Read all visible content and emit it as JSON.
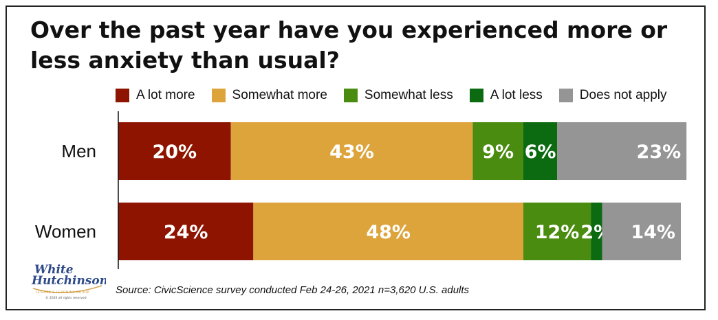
{
  "colors": {
    "a_lot_more": "#8f1400",
    "somewhat_more": "#dea43c",
    "somewhat_less": "#4a8c0f",
    "a_lot_less": "#0c6a10",
    "does_not_apply": "#959595"
  },
  "source": "Source: CivicScience survey conducted Feb 24-26, 2021 n=3,620 U.S. adults",
  "logo": {
    "line1": "White",
    "line2": "Hutchinson",
    "arc": "LEISURE & LEARNING GROUP",
    "copyright": "© 2020 all rights reserved"
  },
  "chart_data": {
    "type": "bar",
    "orientation": "horizontal",
    "stacked": true,
    "title": "Over the past year have you experienced more or less anxiety than usual?",
    "categories": [
      "Men",
      "Women"
    ],
    "series": [
      {
        "name": "A lot more",
        "values": [
          20,
          24
        ],
        "labels": [
          "20%",
          "24%"
        ]
      },
      {
        "name": "Somewhat more",
        "values": [
          43,
          48
        ],
        "labels": [
          "43%",
          "48%"
        ]
      },
      {
        "name": "Somewhat less",
        "values": [
          9,
          12
        ],
        "labels": [
          "9%",
          "12%"
        ]
      },
      {
        "name": "A lot less",
        "values": [
          6,
          2
        ],
        "labels": [
          "6%",
          "2%"
        ]
      },
      {
        "name": "Does not apply",
        "values": [
          23,
          14
        ],
        "labels": [
          "23%",
          "14%"
        ]
      }
    ],
    "xlim": [
      0,
      100
    ],
    "legend": "top",
    "grid": false
  }
}
